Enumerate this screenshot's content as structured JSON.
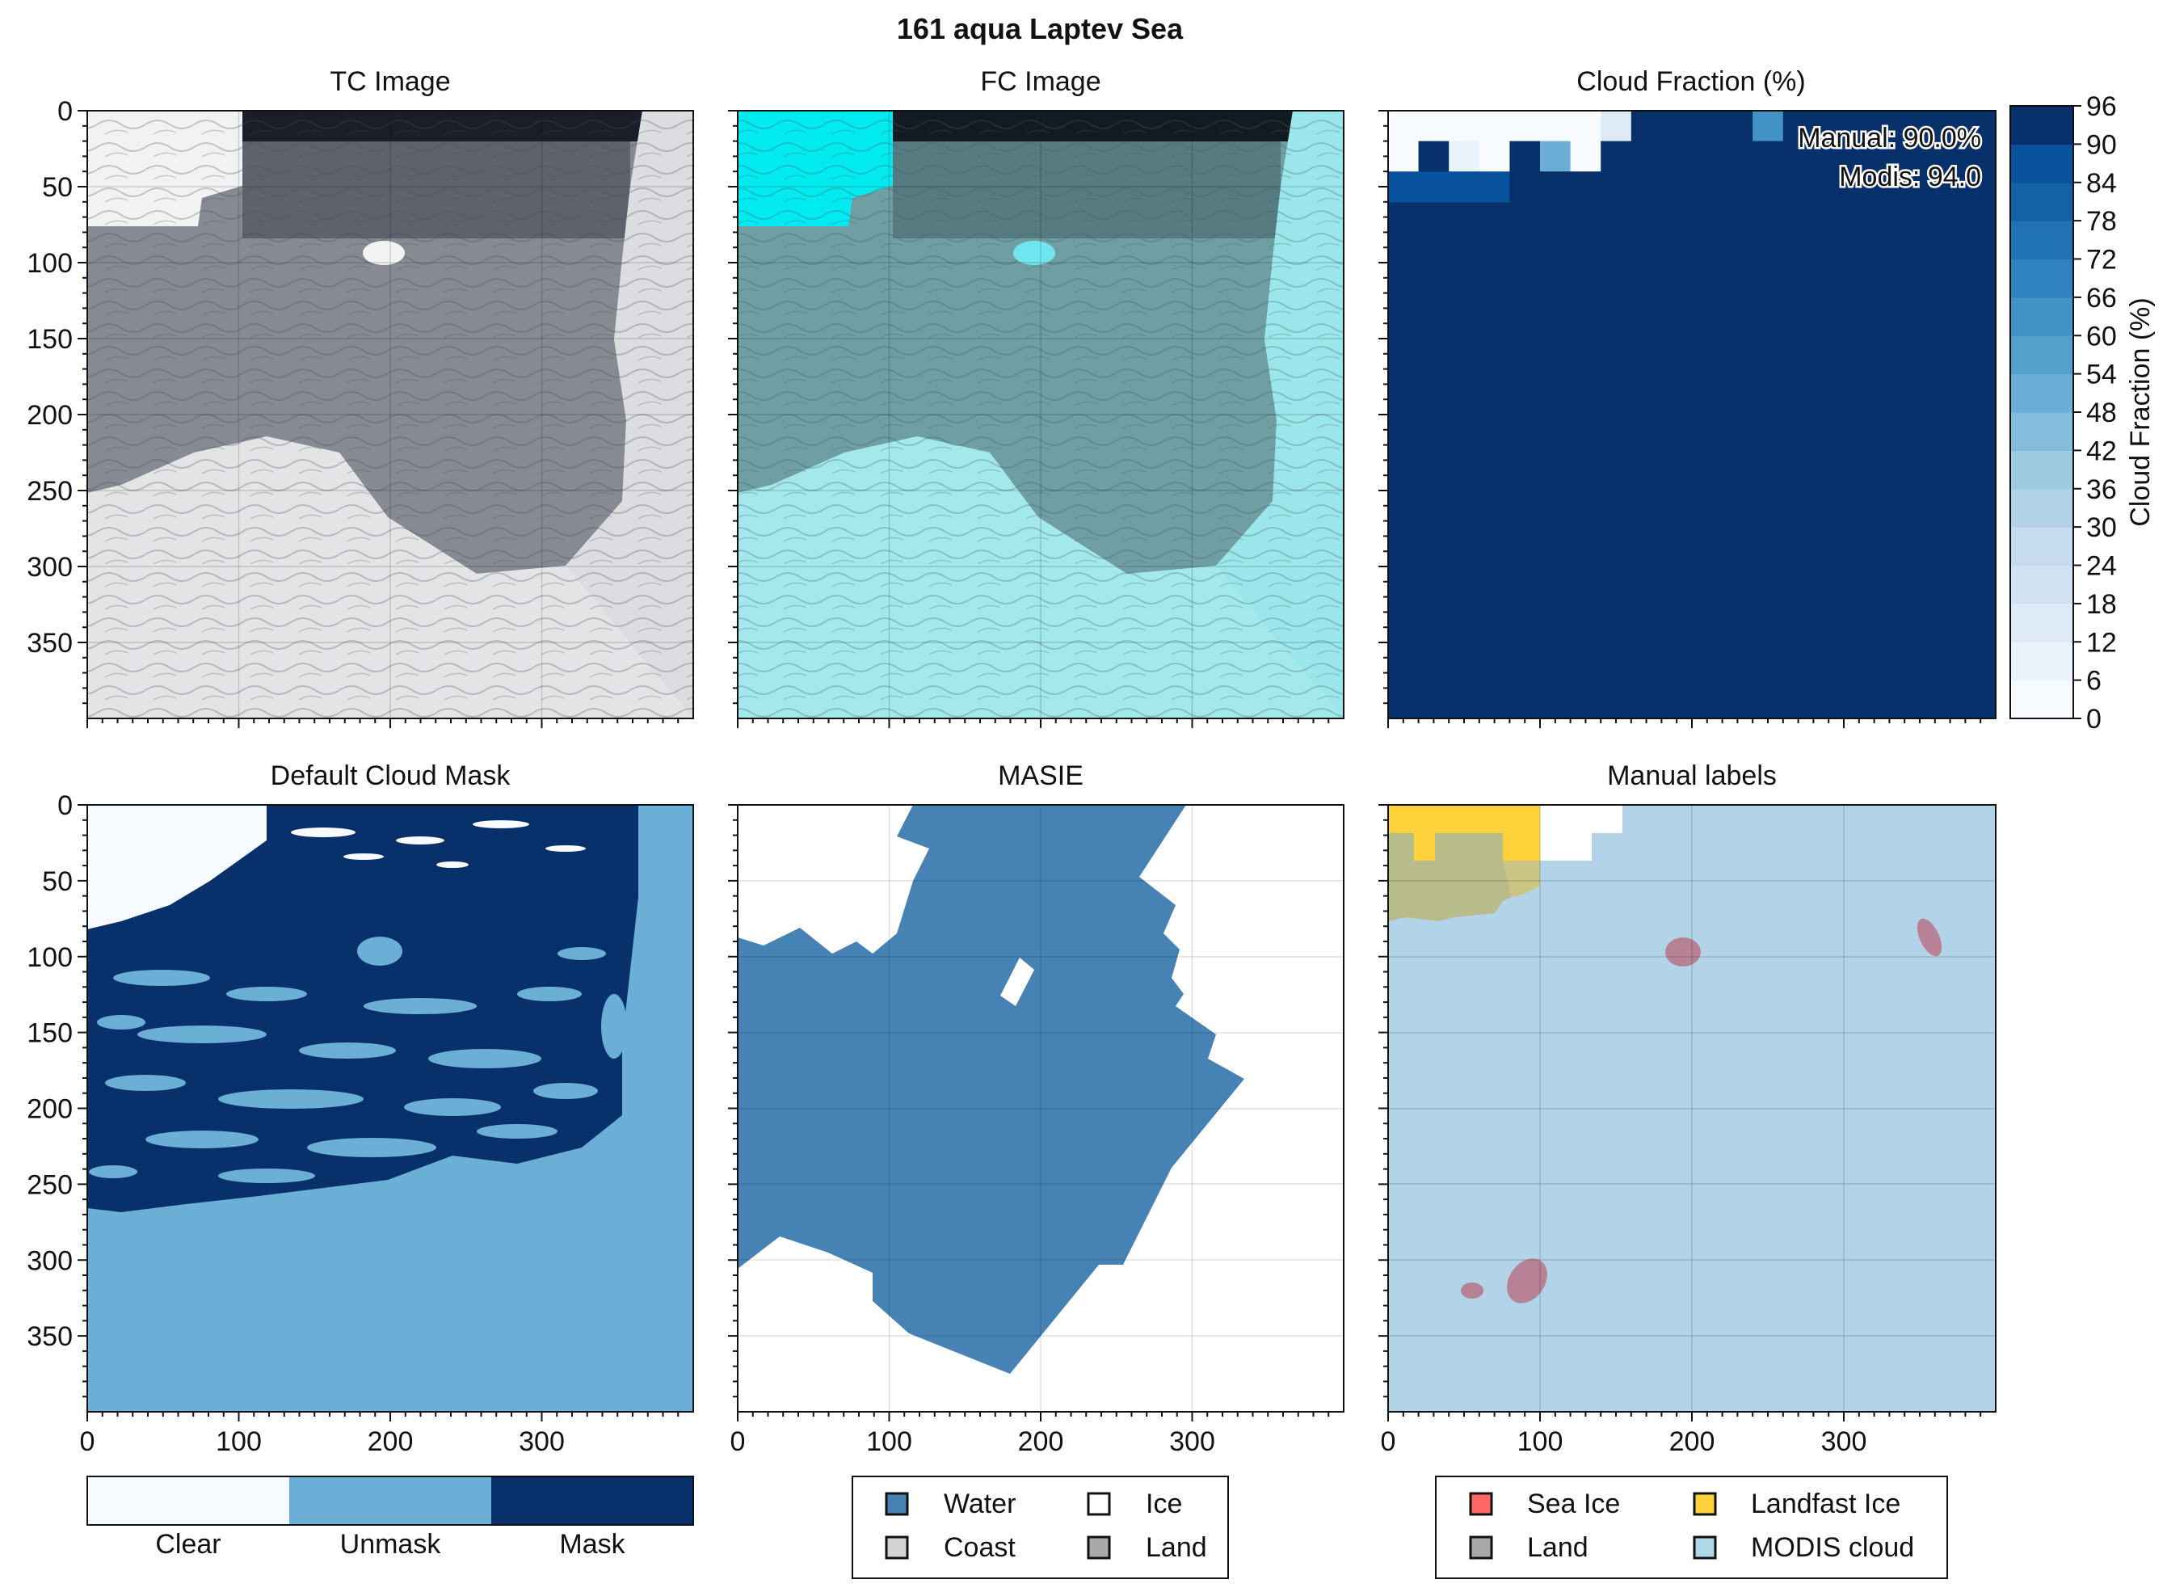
{
  "figure": {
    "title": "161 aqua Laptev Sea"
  },
  "panels": {
    "tc": {
      "title": "TC Image"
    },
    "fc": {
      "title": "FC Image"
    },
    "cf": {
      "title": "Cloud Fraction (%)",
      "annot_manual": "Manual: 90.0%",
      "annot_modis": "Modis: 94.0"
    },
    "dcm": {
      "title": "Default Cloud Mask"
    },
    "masie": {
      "title": "MASIE"
    },
    "manual": {
      "title": "Manual labels"
    }
  },
  "axes": {
    "x_ticks": [
      "0",
      "100",
      "200",
      "300"
    ],
    "y_ticks": [
      "0",
      "50",
      "100",
      "150",
      "200",
      "250",
      "300",
      "350"
    ]
  },
  "colorbar": {
    "label": "Cloud Fraction (%)",
    "ticks": [
      "0",
      "6",
      "12",
      "18",
      "24",
      "30",
      "36",
      "42",
      "48",
      "54",
      "60",
      "66",
      "72",
      "78",
      "84",
      "90",
      "96"
    ]
  },
  "mask_legend": {
    "labels": [
      "Clear",
      "Unmask",
      "Mask"
    ],
    "colors": [
      "#f7fbff",
      "#6baed6",
      "#08306b"
    ]
  },
  "masie_legend": {
    "items": [
      {
        "label": "Water",
        "color": "#4682b4"
      },
      {
        "label": "Ice",
        "color": "#ffffff"
      },
      {
        "label": "Coast",
        "color": "#d3d3d3"
      },
      {
        "label": "Land",
        "color": "#a9a9a9"
      }
    ]
  },
  "manual_legend": {
    "items": [
      {
        "label": "Sea Ice",
        "color": "#ff6666"
      },
      {
        "label": "Landfast Ice",
        "color": "#ffd23c"
      },
      {
        "label": "Land",
        "color": "#a9a9a9"
      },
      {
        "label": "MODIS cloud",
        "color": "#add8e6"
      }
    ]
  },
  "chart_data": [
    {
      "type": "heatmap",
      "title": "TC Image",
      "xlim": [
        0,
        400
      ],
      "ylim": [
        400,
        0
      ]
    },
    {
      "type": "heatmap",
      "title": "FC Image",
      "xlim": [
        0,
        400
      ],
      "ylim": [
        400,
        0
      ]
    },
    {
      "type": "heatmap",
      "title": "Cloud Fraction (%)",
      "xlim": [
        0,
        400
      ],
      "ylim": [
        400,
        0
      ],
      "zlim": [
        0,
        96
      ],
      "manual_percent": 90.0,
      "modis_value": 94.0,
      "grid_cell_size": 20,
      "top_rows": [
        [
          5,
          5,
          5,
          5,
          5,
          5,
          5,
          15,
          96,
          96,
          96,
          96,
          60,
          96,
          96,
          96,
          96,
          96,
          96,
          96
        ],
        [
          5,
          96,
          10,
          5,
          96,
          50,
          5,
          96,
          96,
          96,
          96,
          96,
          96,
          96,
          96,
          96,
          96,
          96,
          96,
          96
        ],
        [
          84,
          84,
          84,
          84,
          96,
          96,
          96,
          96,
          96,
          96,
          96,
          96,
          96,
          96,
          96,
          96,
          96,
          96,
          96,
          96
        ]
      ],
      "remaining_value": 96
    },
    {
      "type": "heatmap",
      "title": "Default Cloud Mask",
      "xlim": [
        0,
        400
      ],
      "ylim": [
        400,
        0
      ],
      "classes": [
        "Clear",
        "Unmask",
        "Mask"
      ]
    },
    {
      "type": "heatmap",
      "title": "MASIE",
      "xlim": [
        0,
        400
      ],
      "ylim": [
        400,
        0
      ],
      "classes": [
        "Water",
        "Ice",
        "Coast",
        "Land"
      ]
    },
    {
      "type": "heatmap",
      "title": "Manual labels",
      "xlim": [
        0,
        400
      ],
      "ylim": [
        400,
        0
      ],
      "classes": [
        "Sea Ice",
        "Landfast Ice",
        "Land",
        "MODIS cloud"
      ]
    }
  ]
}
